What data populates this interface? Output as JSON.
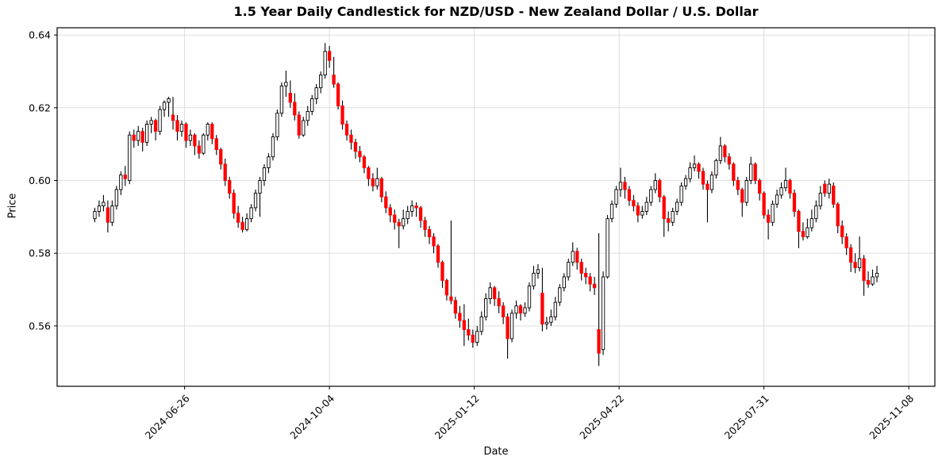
{
  "chart_data": {
    "type": "candlestick",
    "title": "1.5 Year Daily Candlestick for NZD/USD - New Zealand Dollar / U.S. Dollar",
    "xlabel": "Date",
    "ylabel": "Price",
    "grid": true,
    "ylim": [
      0.5434,
      0.642
    ],
    "xlim": [
      "2024-03-30",
      "2025-11-26"
    ],
    "y_ticks": [
      {
        "value": 0.64,
        "label": "0.64"
      },
      {
        "value": 0.62,
        "label": "0.62"
      },
      {
        "value": 0.6,
        "label": "0.60"
      },
      {
        "value": 0.58,
        "label": "0.58"
      },
      {
        "value": 0.56,
        "label": "0.56"
      }
    ],
    "x_ticks": [
      {
        "date": "2024-06-26",
        "label": "2024-06-26"
      },
      {
        "date": "2024-10-04",
        "label": "2024-10-04"
      },
      {
        "date": "2025-01-12",
        "label": "2025-01-12"
      },
      {
        "date": "2025-04-22",
        "label": "2025-04-22"
      },
      {
        "date": "2025-07-31",
        "label": "2025-07-31"
      },
      {
        "date": "2025-11-08",
        "label": "2025-11-08"
      }
    ],
    "colors": {
      "up_fill": "#ffffff",
      "up_edge": "#000000",
      "down_fill": "#ff0000",
      "down_edge": "#ff0000",
      "wick": "#000000",
      "grid": "#d9d9d9",
      "spine": "#000000",
      "background": "#ffffff",
      "text": "#000000"
    },
    "candles": [
      [
        "2024-04-25",
        0.5895,
        0.5925,
        0.5885,
        0.5915
      ],
      [
        "2024-04-28",
        0.5915,
        0.5945,
        0.59,
        0.593
      ],
      [
        "2024-05-01",
        0.593,
        0.596,
        0.5915,
        0.594
      ],
      [
        "2024-05-04",
        0.5925,
        0.5945,
        0.5857,
        0.5885
      ],
      [
        "2024-05-07",
        0.5885,
        0.5945,
        0.5875,
        0.593
      ],
      [
        "2024-05-10",
        0.593,
        0.5985,
        0.592,
        0.5975
      ],
      [
        "2024-05-13",
        0.5975,
        0.6025,
        0.596,
        0.6015
      ],
      [
        "2024-05-16",
        0.6015,
        0.604,
        0.5985,
        0.6005
      ],
      [
        "2024-05-19",
        0.6,
        0.6135,
        0.599,
        0.6125
      ],
      [
        "2024-05-22",
        0.6125,
        0.614,
        0.609,
        0.611
      ],
      [
        "2024-05-25",
        0.611,
        0.615,
        0.6095,
        0.6135
      ],
      [
        "2024-05-28",
        0.6135,
        0.6145,
        0.608,
        0.6105
      ],
      [
        "2024-05-31",
        0.6105,
        0.6165,
        0.6095,
        0.6155
      ],
      [
        "2024-06-03",
        0.6155,
        0.6175,
        0.613,
        0.6165
      ],
      [
        "2024-06-06",
        0.6165,
        0.617,
        0.611,
        0.6135
      ],
      [
        "2024-06-09",
        0.6135,
        0.6205,
        0.6125,
        0.6195
      ],
      [
        "2024-06-12",
        0.6195,
        0.622,
        0.6175,
        0.6215
      ],
      [
        "2024-06-15",
        0.6215,
        0.623,
        0.6175,
        0.6225
      ],
      [
        "2024-06-18",
        0.618,
        0.623,
        0.614,
        0.6165
      ],
      [
        "2024-06-21",
        0.6165,
        0.618,
        0.611,
        0.6135
      ],
      [
        "2024-06-24",
        0.6135,
        0.6165,
        0.612,
        0.6155
      ],
      [
        "2024-06-27",
        0.6155,
        0.616,
        0.609,
        0.611
      ],
      [
        "2024-06-30",
        0.611,
        0.614,
        0.6095,
        0.6125
      ],
      [
        "2024-07-03",
        0.6125,
        0.613,
        0.607,
        0.6095
      ],
      [
        "2024-07-06",
        0.6095,
        0.611,
        0.606,
        0.6075
      ],
      [
        "2024-07-09",
        0.6075,
        0.613,
        0.607,
        0.6125
      ],
      [
        "2024-07-12",
        0.6125,
        0.616,
        0.611,
        0.6155
      ],
      [
        "2024-07-15",
        0.6155,
        0.616,
        0.61,
        0.6115
      ],
      [
        "2024-07-18",
        0.6115,
        0.6125,
        0.607,
        0.6085
      ],
      [
        "2024-07-21",
        0.6085,
        0.609,
        0.603,
        0.6045
      ],
      [
        "2024-07-24",
        0.6045,
        0.606,
        0.5985,
        0.6
      ],
      [
        "2024-07-27",
        0.6,
        0.601,
        0.595,
        0.5965
      ],
      [
        "2024-07-30",
        0.5965,
        0.5975,
        0.5895,
        0.591
      ],
      [
        "2024-08-02",
        0.591,
        0.593,
        0.587,
        0.5885
      ],
      [
        "2024-08-05",
        0.5885,
        0.59,
        0.5857,
        0.5865
      ],
      [
        "2024-08-08",
        0.5865,
        0.591,
        0.586,
        0.5895
      ],
      [
        "2024-08-11",
        0.5895,
        0.5935,
        0.5885,
        0.5925
      ],
      [
        "2024-08-14",
        0.5925,
        0.5975,
        0.5915,
        0.5965
      ],
      [
        "2024-08-17",
        0.5965,
        0.601,
        0.59,
        0.6
      ],
      [
        "2024-08-20",
        0.6,
        0.6045,
        0.5985,
        0.6035
      ],
      [
        "2024-08-23",
        0.6035,
        0.6075,
        0.602,
        0.6065
      ],
      [
        "2024-08-26",
        0.6065,
        0.613,
        0.6055,
        0.612
      ],
      [
        "2024-08-29",
        0.612,
        0.6195,
        0.611,
        0.6185
      ],
      [
        "2024-09-01",
        0.6185,
        0.627,
        0.6175,
        0.626
      ],
      [
        "2024-09-04",
        0.626,
        0.6302,
        0.623,
        0.627
      ],
      [
        "2024-09-07",
        0.624,
        0.6275,
        0.62,
        0.6215
      ],
      [
        "2024-09-10",
        0.6215,
        0.624,
        0.6165,
        0.618
      ],
      [
        "2024-09-13",
        0.618,
        0.619,
        0.6115,
        0.6125
      ],
      [
        "2024-09-16",
        0.6125,
        0.6175,
        0.612,
        0.6165
      ],
      [
        "2024-09-19",
        0.6165,
        0.6205,
        0.615,
        0.619
      ],
      [
        "2024-09-22",
        0.619,
        0.6235,
        0.618,
        0.6225
      ],
      [
        "2024-09-25",
        0.6225,
        0.6265,
        0.621,
        0.6255
      ],
      [
        "2024-09-28",
        0.6255,
        0.63,
        0.624,
        0.629
      ],
      [
        "2024-10-01",
        0.629,
        0.6378,
        0.628,
        0.6355
      ],
      [
        "2024-10-04",
        0.6355,
        0.637,
        0.631,
        0.633
      ],
      [
        "2024-10-07",
        0.629,
        0.634,
        0.6255,
        0.6265
      ],
      [
        "2024-10-10",
        0.6265,
        0.627,
        0.6195,
        0.6205
      ],
      [
        "2024-10-13",
        0.6205,
        0.622,
        0.614,
        0.6155
      ],
      [
        "2024-10-16",
        0.6155,
        0.6165,
        0.611,
        0.6125
      ],
      [
        "2024-10-19",
        0.6125,
        0.614,
        0.6085,
        0.6105
      ],
      [
        "2024-10-22",
        0.6105,
        0.6115,
        0.606,
        0.608
      ],
      [
        "2024-10-25",
        0.608,
        0.6095,
        0.605,
        0.6065
      ],
      [
        "2024-10-28",
        0.6065,
        0.607,
        0.602,
        0.6035
      ],
      [
        "2024-10-31",
        0.6035,
        0.604,
        0.5985,
        0.6005
      ],
      [
        "2024-11-03",
        0.6005,
        0.602,
        0.597,
        0.5985
      ],
      [
        "2024-11-06",
        0.5985,
        0.6035,
        0.5975,
        0.6005
      ],
      [
        "2024-11-09",
        0.6005,
        0.601,
        0.594,
        0.5955
      ],
      [
        "2024-11-12",
        0.5955,
        0.597,
        0.591,
        0.5925
      ],
      [
        "2024-11-15",
        0.5925,
        0.5935,
        0.5885,
        0.5905
      ],
      [
        "2024-11-18",
        0.5905,
        0.592,
        0.5865,
        0.5885
      ],
      [
        "2024-11-21",
        0.5885,
        0.5895,
        0.5814,
        0.5875
      ],
      [
        "2024-11-24",
        0.5875,
        0.592,
        0.5865,
        0.5895
      ],
      [
        "2024-11-27",
        0.5895,
        0.593,
        0.588,
        0.5915
      ],
      [
        "2024-11-30",
        0.5915,
        0.5945,
        0.59,
        0.593
      ],
      [
        "2024-12-03",
        0.593,
        0.594,
        0.59,
        0.5925
      ],
      [
        "2024-12-06",
        0.5925,
        0.593,
        0.587,
        0.589
      ],
      [
        "2024-12-09",
        0.589,
        0.59,
        0.5845,
        0.5865
      ],
      [
        "2024-12-12",
        0.5865,
        0.5875,
        0.5825,
        0.5845
      ],
      [
        "2024-12-15",
        0.5845,
        0.5855,
        0.58,
        0.582
      ],
      [
        "2024-12-18",
        0.582,
        0.5825,
        0.576,
        0.5775
      ],
      [
        "2024-12-21",
        0.5775,
        0.578,
        0.5705,
        0.5725
      ],
      [
        "2024-12-24",
        0.5725,
        0.573,
        0.567,
        0.5685
      ],
      [
        "2024-12-27",
        0.568,
        0.589,
        0.566,
        0.567
      ],
      [
        "2024-12-30",
        0.567,
        0.568,
        0.562,
        0.5635
      ],
      [
        "2025-01-02",
        0.5635,
        0.5655,
        0.5595,
        0.5615
      ],
      [
        "2025-01-05",
        0.5615,
        0.566,
        0.5545,
        0.559
      ],
      [
        "2025-01-08",
        0.559,
        0.562,
        0.556,
        0.5575
      ],
      [
        "2025-01-11",
        0.5575,
        0.559,
        0.554,
        0.5555
      ],
      [
        "2025-01-14",
        0.5555,
        0.56,
        0.5545,
        0.5585
      ],
      [
        "2025-01-17",
        0.5585,
        0.564,
        0.5575,
        0.5625
      ],
      [
        "2025-01-20",
        0.5625,
        0.569,
        0.5615,
        0.5675
      ],
      [
        "2025-01-23",
        0.5675,
        0.572,
        0.566,
        0.5705
      ],
      [
        "2025-01-26",
        0.5705,
        0.571,
        0.5655,
        0.5675
      ],
      [
        "2025-01-29",
        0.5675,
        0.5695,
        0.5635,
        0.5655
      ],
      [
        "2025-02-01",
        0.5655,
        0.5665,
        0.5605,
        0.5625
      ],
      [
        "2025-02-04",
        0.5625,
        0.5635,
        0.551,
        0.5565
      ],
      [
        "2025-02-07",
        0.5565,
        0.5645,
        0.5555,
        0.5635
      ],
      [
        "2025-02-10",
        0.5635,
        0.567,
        0.562,
        0.5655
      ],
      [
        "2025-02-13",
        0.5655,
        0.566,
        0.5615,
        0.5635
      ],
      [
        "2025-02-16",
        0.5635,
        0.5665,
        0.5625,
        0.565
      ],
      [
        "2025-02-19",
        0.565,
        0.572,
        0.564,
        0.571
      ],
      [
        "2025-02-22",
        0.571,
        0.5765,
        0.57,
        0.5745
      ],
      [
        "2025-02-25",
        0.5745,
        0.577,
        0.573,
        0.5755
      ],
      [
        "2025-02-28",
        0.569,
        0.576,
        0.5585,
        0.5605
      ],
      [
        "2025-03-03",
        0.5605,
        0.5625,
        0.559,
        0.561
      ],
      [
        "2025-03-06",
        0.561,
        0.5645,
        0.56,
        0.5625
      ],
      [
        "2025-03-09",
        0.5625,
        0.568,
        0.5615,
        0.5665
      ],
      [
        "2025-03-12",
        0.5665,
        0.5715,
        0.5655,
        0.5705
      ],
      [
        "2025-03-15",
        0.5705,
        0.5745,
        0.5695,
        0.5735
      ],
      [
        "2025-03-18",
        0.5735,
        0.5785,
        0.5725,
        0.5775
      ],
      [
        "2025-03-21",
        0.5775,
        0.583,
        0.5765,
        0.5805
      ],
      [
        "2025-03-24",
        0.5805,
        0.5815,
        0.5755,
        0.5775
      ],
      [
        "2025-03-27",
        0.5775,
        0.5785,
        0.5725,
        0.5745
      ],
      [
        "2025-03-30",
        0.5745,
        0.576,
        0.5715,
        0.5735
      ],
      [
        "2025-04-02",
        0.5735,
        0.5745,
        0.5695,
        0.5715
      ],
      [
        "2025-04-05",
        0.5715,
        0.5735,
        0.5685,
        0.5705
      ],
      [
        "2025-04-08",
        0.559,
        0.5855,
        0.549,
        0.5525
      ],
      [
        "2025-04-11",
        0.5535,
        0.575,
        0.552,
        0.5735
      ],
      [
        "2025-04-14",
        0.5735,
        0.5905,
        0.573,
        0.5895
      ],
      [
        "2025-04-17",
        0.5895,
        0.5945,
        0.5885,
        0.5935
      ],
      [
        "2025-04-20",
        0.5935,
        0.5985,
        0.5925,
        0.5975
      ],
      [
        "2025-04-23",
        0.5975,
        0.6035,
        0.5955,
        0.5995
      ],
      [
        "2025-04-26",
        0.5995,
        0.601,
        0.595,
        0.5975
      ],
      [
        "2025-04-29",
        0.5975,
        0.5985,
        0.593,
        0.5945
      ],
      [
        "2025-05-02",
        0.5945,
        0.596,
        0.5915,
        0.593
      ],
      [
        "2025-05-05",
        0.593,
        0.594,
        0.5885,
        0.5905
      ],
      [
        "2025-05-08",
        0.5905,
        0.593,
        0.5895,
        0.5915
      ],
      [
        "2025-05-11",
        0.5915,
        0.5955,
        0.5905,
        0.594
      ],
      [
        "2025-05-14",
        0.594,
        0.5985,
        0.593,
        0.5975
      ],
      [
        "2025-05-17",
        0.5975,
        0.602,
        0.5965,
        0.6
      ],
      [
        "2025-05-20",
        0.6,
        0.6005,
        0.594,
        0.5955
      ],
      [
        "2025-05-23",
        0.5955,
        0.596,
        0.5845,
        0.5895
      ],
      [
        "2025-05-26",
        0.5895,
        0.5915,
        0.586,
        0.5885
      ],
      [
        "2025-05-29",
        0.5885,
        0.5925,
        0.5875,
        0.5915
      ],
      [
        "2025-06-01",
        0.5915,
        0.595,
        0.5905,
        0.594
      ],
      [
        "2025-06-04",
        0.594,
        0.5995,
        0.593,
        0.5985
      ],
      [
        "2025-06-07",
        0.5985,
        0.6015,
        0.5975,
        0.6005
      ],
      [
        "2025-06-10",
        0.6005,
        0.605,
        0.5995,
        0.6035
      ],
      [
        "2025-06-13",
        0.6035,
        0.6069,
        0.6025,
        0.6045
      ],
      [
        "2025-06-16",
        0.6045,
        0.605,
        0.6005,
        0.6025
      ],
      [
        "2025-06-19",
        0.6025,
        0.6035,
        0.5975,
        0.599
      ],
      [
        "2025-06-22",
        0.599,
        0.6,
        0.5885,
        0.5975
      ],
      [
        "2025-06-25",
        0.5975,
        0.6025,
        0.5965,
        0.6015
      ],
      [
        "2025-06-28",
        0.6015,
        0.606,
        0.6005,
        0.6055
      ],
      [
        "2025-07-01",
        0.6055,
        0.612,
        0.6045,
        0.6095
      ],
      [
        "2025-07-04",
        0.6095,
        0.61,
        0.605,
        0.6065
      ],
      [
        "2025-07-07",
        0.6065,
        0.6075,
        0.603,
        0.6045
      ],
      [
        "2025-07-10",
        0.6045,
        0.605,
        0.5985,
        0.6
      ],
      [
        "2025-07-13",
        0.6,
        0.601,
        0.596,
        0.5975
      ],
      [
        "2025-07-16",
        0.5975,
        0.598,
        0.59,
        0.594
      ],
      [
        "2025-07-19",
        0.594,
        0.601,
        0.593,
        0.6
      ],
      [
        "2025-07-22",
        0.6,
        0.6065,
        0.599,
        0.6045
      ],
      [
        "2025-07-25",
        0.6045,
        0.605,
        0.599,
        0.6
      ],
      [
        "2025-07-28",
        0.6,
        0.6005,
        0.5945,
        0.5965
      ],
      [
        "2025-07-31",
        0.5965,
        0.597,
        0.5895,
        0.5905
      ],
      [
        "2025-08-03",
        0.5905,
        0.592,
        0.5838,
        0.5885
      ],
      [
        "2025-08-06",
        0.5885,
        0.5945,
        0.5875,
        0.5935
      ],
      [
        "2025-08-09",
        0.5935,
        0.5975,
        0.5925,
        0.596
      ],
      [
        "2025-08-12",
        0.596,
        0.5995,
        0.595,
        0.598
      ],
      [
        "2025-08-15",
        0.598,
        0.6035,
        0.597,
        0.6
      ],
      [
        "2025-08-18",
        0.6,
        0.6005,
        0.595,
        0.5965
      ],
      [
        "2025-08-21",
        0.5965,
        0.5975,
        0.59,
        0.5915
      ],
      [
        "2025-08-24",
        0.5915,
        0.592,
        0.5814,
        0.586
      ],
      [
        "2025-08-27",
        0.586,
        0.5885,
        0.5835,
        0.5845
      ],
      [
        "2025-08-30",
        0.5845,
        0.5895,
        0.584,
        0.587
      ],
      [
        "2025-09-02",
        0.587,
        0.592,
        0.586,
        0.5895
      ],
      [
        "2025-09-05",
        0.5895,
        0.5945,
        0.5885,
        0.593
      ],
      [
        "2025-09-08",
        0.593,
        0.5985,
        0.592,
        0.5965
      ],
      [
        "2025-09-11",
        0.599,
        0.6,
        0.5955,
        0.5965
      ],
      [
        "2025-09-14",
        0.5965,
        0.6005,
        0.595,
        0.599
      ],
      [
        "2025-09-17",
        0.5985,
        0.5995,
        0.5925,
        0.5935
      ],
      [
        "2025-09-20",
        0.5935,
        0.594,
        0.5855,
        0.5875
      ],
      [
        "2025-09-23",
        0.5875,
        0.589,
        0.5825,
        0.5845
      ],
      [
        "2025-09-26",
        0.5845,
        0.5855,
        0.5795,
        0.5815
      ],
      [
        "2025-09-29",
        0.5815,
        0.5825,
        0.5748,
        0.5775
      ],
      [
        "2025-10-02",
        0.5775,
        0.58,
        0.5745,
        0.576
      ],
      [
        "2025-10-05",
        0.576,
        0.5846,
        0.575,
        0.5785
      ],
      [
        "2025-10-08",
        0.5785,
        0.5795,
        0.5683,
        0.5725
      ],
      [
        "2025-10-11",
        0.5725,
        0.575,
        0.5705,
        0.5715
      ],
      [
        "2025-10-14",
        0.5715,
        0.5755,
        0.571,
        0.5735
      ],
      [
        "2025-10-17",
        0.5735,
        0.5765,
        0.572,
        0.5745
      ]
    ]
  }
}
